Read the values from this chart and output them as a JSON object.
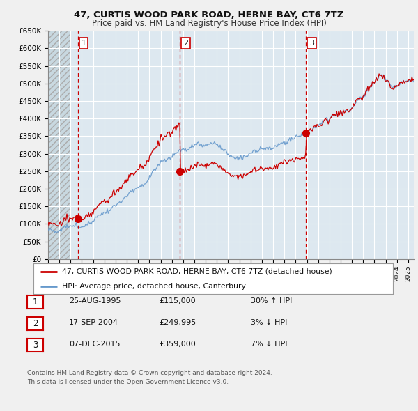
{
  "title1": "47, CURTIS WOOD PARK ROAD, HERNE BAY, CT6 7TZ",
  "title2": "Price paid vs. HM Land Registry's House Price Index (HPI)",
  "ylabel_ticks": [
    "£0",
    "£50K",
    "£100K",
    "£150K",
    "£200K",
    "£250K",
    "£300K",
    "£350K",
    "£400K",
    "£450K",
    "£500K",
    "£550K",
    "£600K",
    "£650K"
  ],
  "ytick_vals": [
    0,
    50000,
    100000,
    150000,
    200000,
    250000,
    300000,
    350000,
    400000,
    450000,
    500000,
    550000,
    600000,
    650000
  ],
  "xmin": 1993.0,
  "xmax": 2025.5,
  "ymin": 0,
  "ymax": 650000,
  "purchase_dates": [
    1995.65,
    2004.72,
    2015.93
  ],
  "purchase_prices": [
    115000,
    249995,
    359000
  ],
  "purchase_labels": [
    "1",
    "2",
    "3"
  ],
  "sale_color": "#cc0000",
  "hpi_color": "#6699cc",
  "vline_color": "#cc0000",
  "plot_bg_color": "#dde8f0",
  "legend_label1": "47, CURTIS WOOD PARK ROAD, HERNE BAY, CT6 7TZ (detached house)",
  "legend_label2": "HPI: Average price, detached house, Canterbury",
  "table_rows": [
    {
      "num": "1",
      "date": "25-AUG-1995",
      "price": "£115,000",
      "change": "30% ↑ HPI"
    },
    {
      "num": "2",
      "date": "17-SEP-2004",
      "price": "£249,995",
      "change": "3% ↓ HPI"
    },
    {
      "num": "3",
      "date": "07-DEC-2015",
      "price": "£359,000",
      "change": "7% ↓ HPI"
    }
  ],
  "footnote1": "Contains HM Land Registry data © Crown copyright and database right 2024.",
  "footnote2": "This data is licensed under the Open Government Licence v3.0.",
  "bg_color": "#f0f0f0",
  "hatch_end_year": 1995.0
}
